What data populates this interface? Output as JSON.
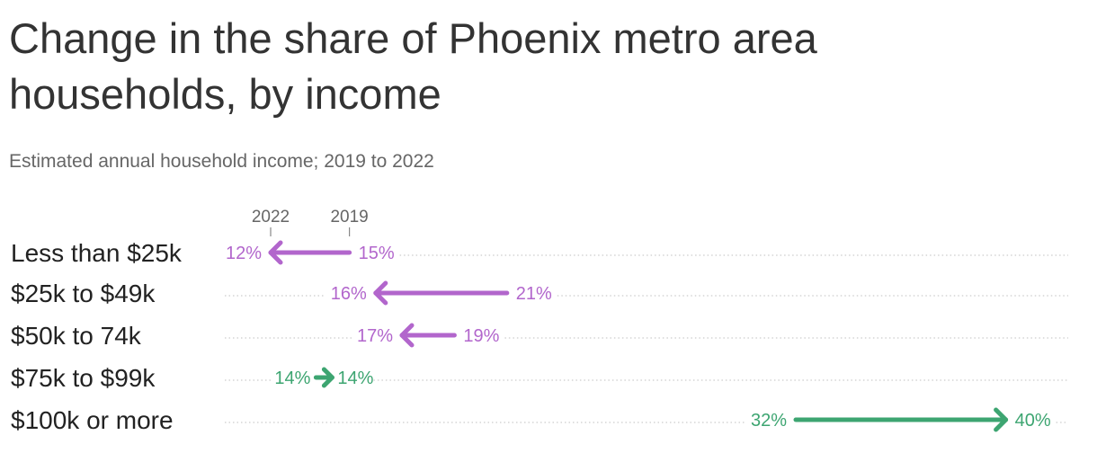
{
  "title": "Change in the share of Phoenix metro area households, by income",
  "subtitle": "Estimated annual household income; 2019 to 2022",
  "colors": {
    "decrease": "#b266cc",
    "increase": "#3da571",
    "text": "#333333",
    "muted": "#666666",
    "grid": "#cccccc"
  },
  "chart_data": {
    "type": "arrow",
    "legend_markers": {
      "end_year": "2022",
      "start_year": "2019"
    },
    "categories": [
      "Less than $25k",
      "$25k to $49k",
      "$50k to 74k",
      "$75k to $99k",
      "$100k or more"
    ],
    "series": [
      {
        "name": "2019",
        "values": [
          15,
          21,
          19,
          14,
          32
        ]
      },
      {
        "name": "2022",
        "values": [
          12,
          16,
          17,
          14,
          40
        ]
      }
    ],
    "labels_2019": [
      "15%",
      "21%",
      "19%",
      "14%",
      "32%"
    ],
    "labels_2022": [
      "12%",
      "16%",
      "17%",
      "14%",
      "40%"
    ],
    "unit": "%",
    "grid": "dotted row guides"
  }
}
